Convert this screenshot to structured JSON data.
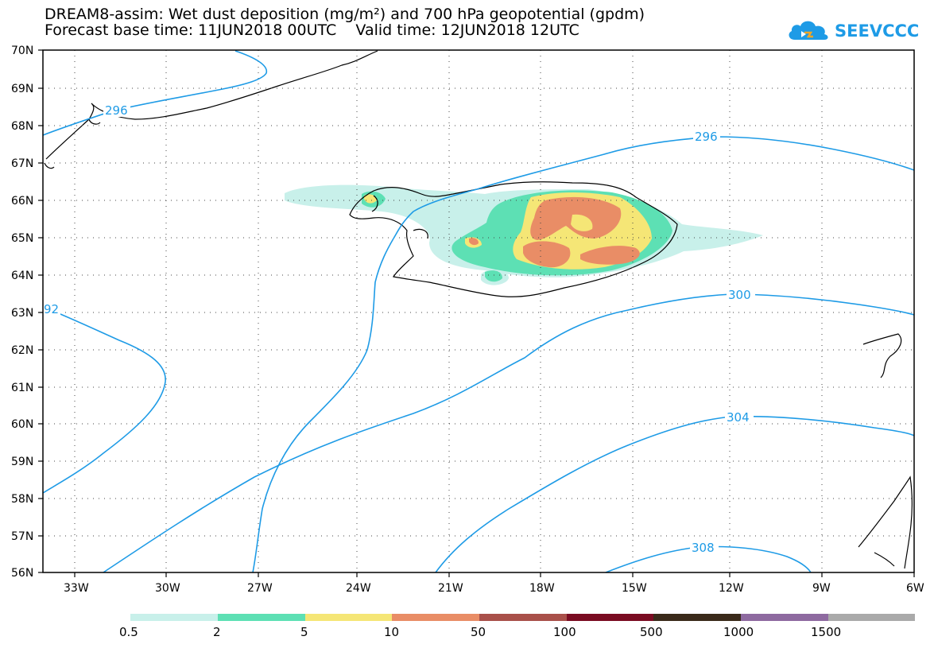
{
  "title": {
    "line1": "DREAM8-assim: Wet dust deposition (mg/m²) and 700 hPa geopotential (gpdm)",
    "line2": "Forecast base time: 11JUN2018 00UTC    Valid time: 12JUN2018 12UTC"
  },
  "logo": {
    "text": "SEEVCCC",
    "icon": "cloud-icon"
  },
  "axes": {
    "lat_ticks": [
      "56N",
      "57N",
      "58N",
      "59N",
      "60N",
      "61N",
      "62N",
      "63N",
      "64N",
      "65N",
      "66N",
      "67N",
      "68N",
      "69N",
      "70N"
    ],
    "lon_ticks": [
      "33W",
      "30W",
      "27W",
      "24W",
      "21W",
      "18W",
      "15W",
      "12W",
      "9W",
      "6W"
    ],
    "lat_range": [
      56,
      70
    ],
    "lon_range": [
      -34.5,
      -6
    ]
  },
  "contours": [
    {
      "value": "296",
      "label": "296",
      "color": "#1e9be6"
    },
    {
      "value": "292",
      "label": "92",
      "color": "#1e9be6"
    },
    {
      "value": "300",
      "label": "300",
      "color": "#1e9be6"
    },
    {
      "value": "304",
      "label": "304",
      "color": "#1e9be6"
    },
    {
      "value": "308",
      "label": "308",
      "color": "#1e9be6"
    }
  ],
  "legend": {
    "thresholds": [
      "0.5",
      "2",
      "5",
      "10",
      "50",
      "100",
      "500",
      "1000",
      "1500"
    ],
    "colors": [
      "#c8f0ea",
      "#5de0b4",
      "#f5e676",
      "#e98d66",
      "#a9504a",
      "#7a0c22",
      "#3a2a1a",
      "#8e6aa0",
      "#aaaaaa"
    ]
  }
}
